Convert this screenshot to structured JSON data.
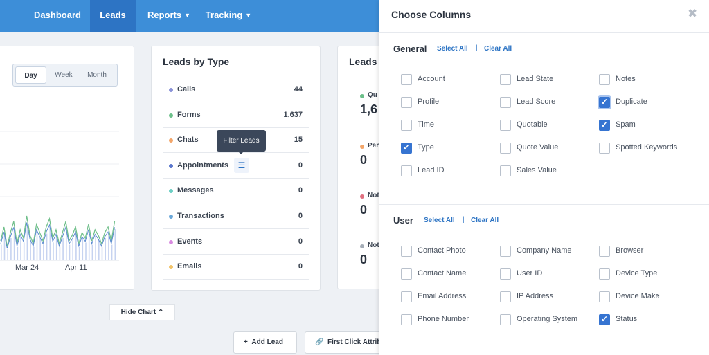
{
  "nav": {
    "items": [
      "Dashboard",
      "Leads",
      "Reports",
      "Tracking"
    ],
    "active": "Leads"
  },
  "range_toggle": [
    "Day",
    "Week",
    "Month"
  ],
  "chart": {
    "x_labels": [
      "Mar 24",
      "Apr 11"
    ],
    "hide_label": "Hide Chart"
  },
  "leads_by_type": {
    "title": "Leads by Type",
    "rows": [
      {
        "label": "Calls",
        "value": "44",
        "color": "#8b93d8"
      },
      {
        "label": "Forms",
        "value": "1,637",
        "color": "#6cc08a"
      },
      {
        "label": "Chats",
        "value": "15",
        "color": "#f3a66a"
      },
      {
        "label": "Appointments",
        "value": "0",
        "color": "#5b77cc"
      },
      {
        "label": "Messages",
        "value": "0",
        "color": "#6ccfc4"
      },
      {
        "label": "Transactions",
        "value": "0",
        "color": "#6aa7d8"
      },
      {
        "label": "Events",
        "value": "0",
        "color": "#d88ae0"
      },
      {
        "label": "Emails",
        "value": "0",
        "color": "#f2c46a"
      }
    ],
    "tooltip": "Filter Leads"
  },
  "leads_card2": {
    "title": "Leads",
    "items": [
      {
        "label": "Qu",
        "value": "1,6",
        "color": "#6cc08a"
      },
      {
        "label": "Per",
        "value": "0",
        "color": "#f3a66a"
      },
      {
        "label": "Not",
        "value": "0",
        "color": "#e07080"
      },
      {
        "label": "Not",
        "value": "0",
        "color": "#a5adb7"
      }
    ]
  },
  "buttons": {
    "add_lead": "Add Lead",
    "first_click": "First Click Attrib"
  },
  "panel": {
    "title": "Choose Columns",
    "select_all": "Select All",
    "clear_all": "Clear All",
    "general": {
      "title": "General",
      "options": [
        {
          "label": "Account",
          "checked": false
        },
        {
          "label": "Lead State",
          "checked": false
        },
        {
          "label": "Notes",
          "checked": false
        },
        {
          "label": "Profile",
          "checked": false
        },
        {
          "label": "Lead Score",
          "checked": false
        },
        {
          "label": "Duplicate",
          "checked": true
        },
        {
          "label": "Time",
          "checked": false
        },
        {
          "label": "Quotable",
          "checked": false
        },
        {
          "label": "Spam",
          "checked": true
        },
        {
          "label": "Type",
          "checked": true
        },
        {
          "label": "Quote Value",
          "checked": false
        },
        {
          "label": "Spotted Keywords",
          "checked": false
        },
        {
          "label": "Lead ID",
          "checked": false
        },
        {
          "label": "Sales Value",
          "checked": false
        }
      ]
    },
    "user": {
      "title": "User",
      "options": [
        {
          "label": "Contact Photo",
          "checked": false
        },
        {
          "label": "Company Name",
          "checked": false
        },
        {
          "label": "Browser",
          "checked": false
        },
        {
          "label": "Contact Name",
          "checked": false
        },
        {
          "label": "User ID",
          "checked": false
        },
        {
          "label": "Device Type",
          "checked": false
        },
        {
          "label": "Email Address",
          "checked": false
        },
        {
          "label": "IP Address",
          "checked": false
        },
        {
          "label": "Device Make",
          "checked": false
        },
        {
          "label": "Phone Number",
          "checked": false
        },
        {
          "label": "Operating System",
          "checked": false
        },
        {
          "label": "Status",
          "checked": true
        }
      ]
    }
  }
}
